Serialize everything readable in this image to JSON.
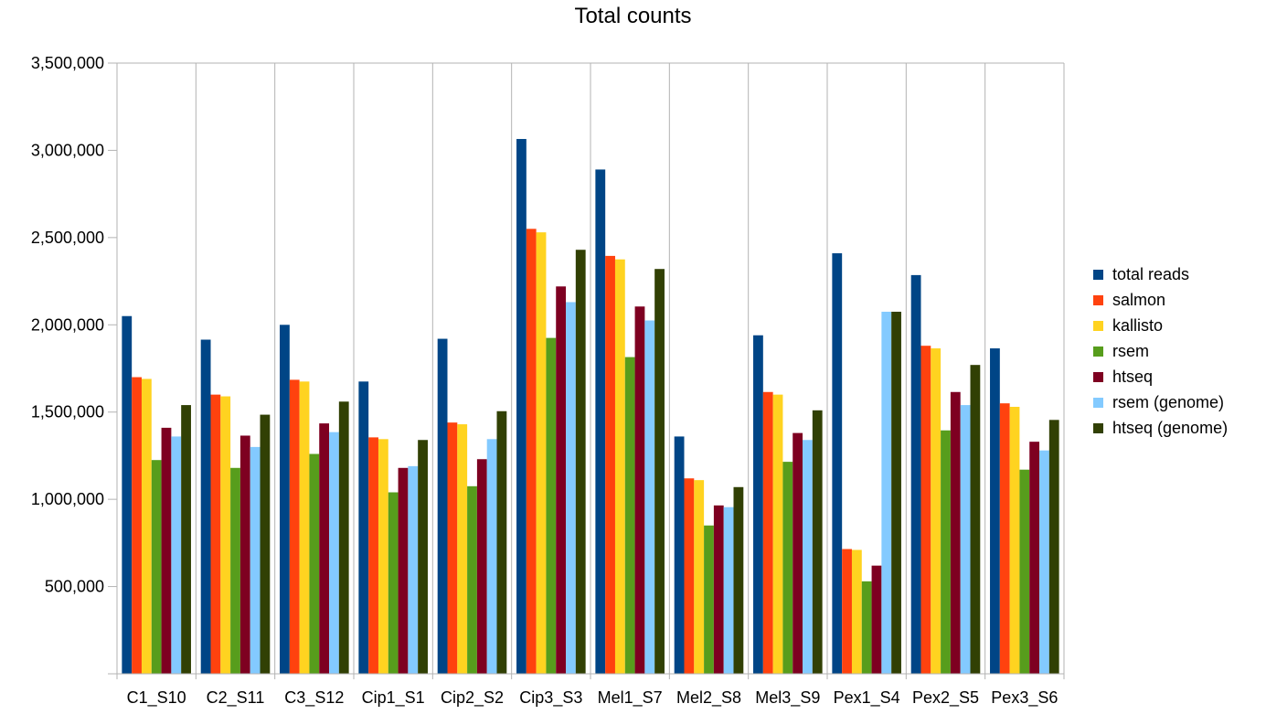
{
  "chart_data": {
    "type": "bar",
    "title": "Total counts",
    "xlabel": "",
    "ylabel": "",
    "ylim": [
      0,
      3500000
    ],
    "yticks": [
      0,
      500000,
      1000000,
      1500000,
      2000000,
      2500000,
      3000000,
      3500000
    ],
    "ytick_labels": [
      "",
      "500,000",
      "1,000,000",
      "1,500,000",
      "2,000,000",
      "2,500,000",
      "3,000,000",
      "3,500,000"
    ],
    "grid": "vertical",
    "legend_position": "right",
    "categories": [
      "C1_S10",
      "C2_S11",
      "C3_S12",
      "Cip1_S1",
      "Cip2_S2",
      "Cip3_S3",
      "Mel1_S7",
      "Mel2_S8",
      "Mel3_S9",
      "Pex1_S4",
      "Pex2_S5",
      "Pex3_S6"
    ],
    "series": [
      {
        "name": "total reads",
        "color": "#004586",
        "values": [
          2050000,
          1915000,
          2000000,
          1675000,
          1920000,
          3065000,
          2890000,
          1360000,
          1940000,
          2410000,
          2285000,
          1865000
        ]
      },
      {
        "name": "salmon",
        "color": "#ff420e",
        "values": [
          1700000,
          1600000,
          1685000,
          1355000,
          1440000,
          2550000,
          2395000,
          1120000,
          1615000,
          715000,
          1880000,
          1550000
        ]
      },
      {
        "name": "kallisto",
        "color": "#ffd320",
        "values": [
          1690000,
          1590000,
          1675000,
          1345000,
          1430000,
          2530000,
          2375000,
          1110000,
          1600000,
          710000,
          1865000,
          1530000
        ]
      },
      {
        "name": "rsem",
        "color": "#579d1c",
        "values": [
          1225000,
          1180000,
          1260000,
          1040000,
          1075000,
          1925000,
          1815000,
          850000,
          1215000,
          530000,
          1395000,
          1170000
        ]
      },
      {
        "name": "htseq",
        "color": "#7e0021",
        "values": [
          1410000,
          1365000,
          1435000,
          1180000,
          1230000,
          2220000,
          2105000,
          965000,
          1380000,
          620000,
          1615000,
          1330000
        ]
      },
      {
        "name": "rsem (genome)",
        "color": "#83caff",
        "values": [
          1360000,
          1300000,
          1385000,
          1190000,
          1345000,
          2130000,
          2025000,
          955000,
          1340000,
          2075000,
          1540000,
          1280000
        ]
      },
      {
        "name": "htseq (genome)",
        "color": "#314004",
        "values": [
          1540000,
          1485000,
          1560000,
          1340000,
          1505000,
          2430000,
          2320000,
          1070000,
          1510000,
          2075000,
          1770000,
          1455000
        ]
      }
    ]
  }
}
